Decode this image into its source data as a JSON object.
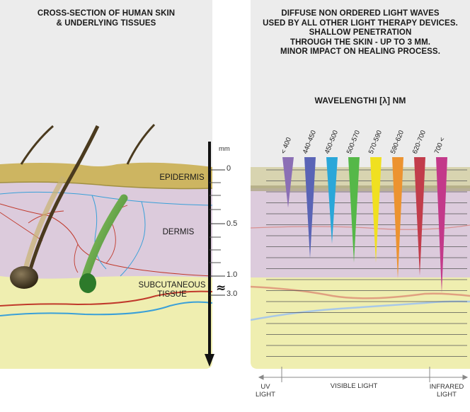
{
  "left_title": [
    "CROSS-SECTION OF HUMAN SKIN",
    "& UNDERLYING TISSUES"
  ],
  "right_description": [
    "DIFFUSE NON ORDERED LIGHT WAVES",
    "USED BY ALL OTHER LIGHT THERAPY DEVICES.",
    "SHALLOW PENETRATION",
    "THROUGH THE SKIN - UP TO 3 MM.",
    "MINOR IMPACT ON HEALING PROCESS."
  ],
  "wavelength_title": "WAVELENGTHI [λ] NM",
  "layers": {
    "epidermis": "EPIDERMIS",
    "dermis": "DERMIS",
    "subcutaneous": [
      "SUBCUTANEOUS",
      "TISSUE"
    ]
  },
  "scale": {
    "unit": "mm",
    "ticks": [
      "0",
      "0.5",
      "1.0",
      "3.0"
    ],
    "break_symbol": "≈"
  },
  "wavelength_bands": [
    {
      "label": "< 400",
      "color": "#8b6fb5",
      "depth": 0.35
    },
    {
      "label": "440-450",
      "color": "#5a64b6",
      "depth": 0.7
    },
    {
      "label": "450-500",
      "color": "#2aa7d9",
      "depth": 0.6
    },
    {
      "label": "500-570",
      "color": "#55b848",
      "depth": 0.73
    },
    {
      "label": "570-590",
      "color": "#f0e020",
      "depth": 0.73
    },
    {
      "label": "590-620",
      "color": "#ec9330",
      "depth": 0.84
    },
    {
      "label": "620-700",
      "color": "#c23c4b",
      "depth": 0.82
    },
    {
      "label": "700 <",
      "color": "#c3398a",
      "depth": 0.94
    }
  ],
  "spectrum_labels": {
    "uv": [
      "UV",
      "LIGHT"
    ],
    "visible": "VISIBLE LIGHT",
    "infrared": [
      "INFRARED",
      "LIGHT"
    ]
  },
  "colors": {
    "panel_bg": "#ececec",
    "epidermis": "#cdb561",
    "dermis": "#dccbdc",
    "subcutaneous": "#efeeb0",
    "vessel_red": "#c0392b",
    "vessel_blue": "#3aa0d8",
    "hair": "#4a3a1e"
  }
}
